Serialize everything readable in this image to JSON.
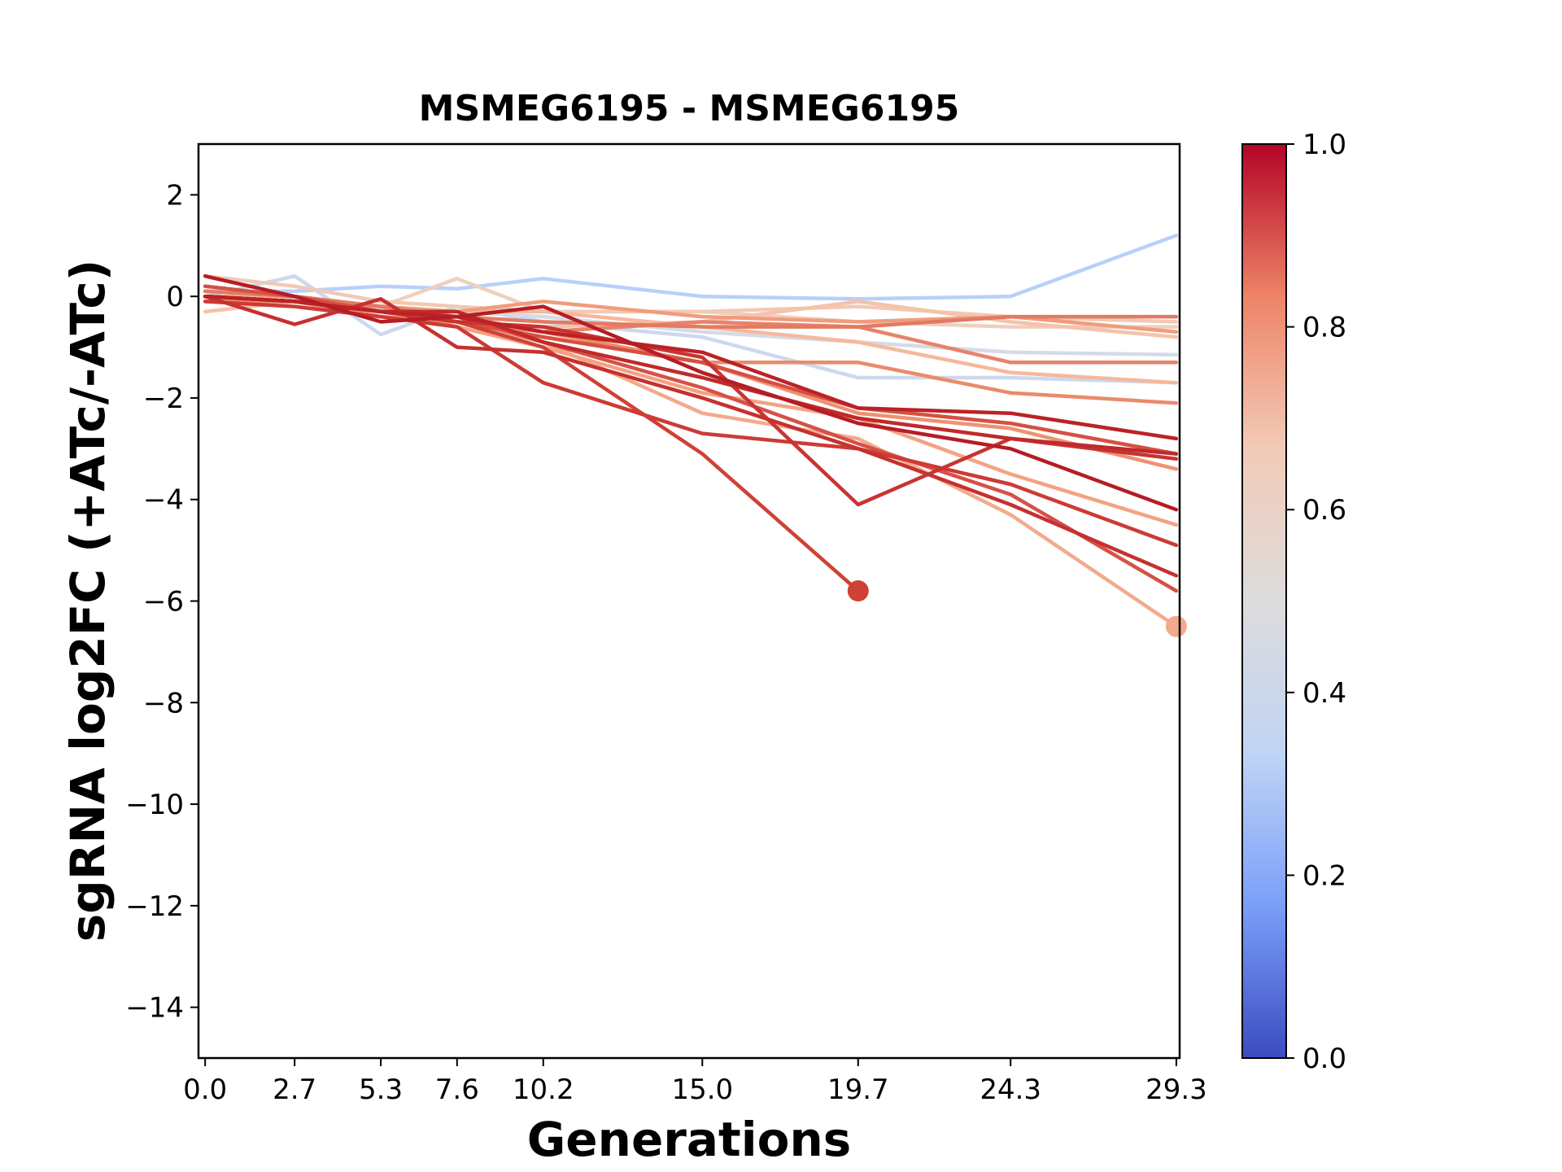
{
  "chart_data": {
    "type": "line",
    "title": "MSMEG6195 - MSMEG6195",
    "xlabel": "Generations",
    "ylabel": "sgRNA log2FC (+ATc/-ATc)",
    "x_ticks": [
      "0.0",
      "2.7",
      "5.3",
      "7.6",
      "10.2",
      "15.0",
      "19.7",
      "24.3",
      "29.3"
    ],
    "y_ticks": [
      "2",
      "0",
      "−2",
      "−4",
      "−6",
      "−8",
      "−10",
      "−12",
      "−14"
    ],
    "xlim": [
      -0.2,
      29.4
    ],
    "ylim": [
      -15,
      3
    ],
    "grid": false,
    "colorbar": {
      "cmap": "coolwarm",
      "range": [
        0,
        1
      ],
      "ticks": [
        "0.0",
        "0.2",
        "0.4",
        "0.6",
        "0.8",
        "1.0"
      ],
      "colors": [
        "#3b4cc0",
        "#7b9ff9",
        "#c0d4f5",
        "#dddcdc",
        "#f2cbb7",
        "#ee8468",
        "#b40426"
      ]
    },
    "series": [
      {
        "color": "#b8d0f9",
        "x": [
          0,
          2.7,
          5.3,
          7.6,
          10.2,
          15.0,
          19.7,
          24.3,
          29.3
        ],
        "y": [
          0.1,
          0.1,
          0.2,
          0.15,
          0.35,
          0.0,
          -0.05,
          0.0,
          1.2
        ]
      },
      {
        "color": "#cdd8ee",
        "x": [
          0,
          2.7,
          5.3,
          7.6,
          10.2,
          15.0,
          19.7,
          24.3,
          29.3
        ],
        "y": [
          0.0,
          0.4,
          -0.75,
          -0.2,
          -0.5,
          -0.8,
          -1.6,
          -1.6,
          -1.7
        ]
      },
      {
        "color": "#d5dbe5",
        "x": [
          0,
          2.7,
          5.3,
          7.6,
          10.2,
          15.0,
          19.7,
          24.3,
          29.3
        ],
        "y": [
          -0.1,
          -0.05,
          -0.25,
          -0.3,
          -0.4,
          -0.7,
          -0.9,
          -1.1,
          -1.15
        ]
      },
      {
        "color": "#efcfbd",
        "x": [
          0,
          2.7,
          5.3,
          7.6,
          10.2,
          15.0,
          19.7,
          24.3,
          29.3
        ],
        "y": [
          0.2,
          0.0,
          -0.2,
          0.35,
          -0.3,
          -0.3,
          -0.5,
          -0.6,
          -0.6
        ]
      },
      {
        "color": "#f2c9b4",
        "x": [
          0,
          2.7,
          5.3,
          7.6,
          10.2,
          15.0,
          19.7,
          24.3,
          29.3
        ],
        "y": [
          0.4,
          0.2,
          -0.1,
          -0.2,
          -0.3,
          -0.3,
          -0.2,
          -0.4,
          -0.5
        ]
      },
      {
        "color": "#f4c3aa",
        "x": [
          0,
          2.7,
          5.3,
          7.6,
          10.2,
          15.0,
          19.7,
          24.3,
          29.3
        ],
        "y": [
          -0.3,
          -0.1,
          -0.3,
          -0.5,
          -0.6,
          -0.5,
          -0.1,
          -0.5,
          -0.8
        ]
      },
      {
        "color": "#f6b89c",
        "x": [
          0,
          2.7,
          5.3,
          7.6,
          10.2,
          15.0,
          19.7,
          24.3,
          29.3
        ],
        "y": [
          0.0,
          0.0,
          -0.2,
          -0.3,
          -0.3,
          -0.6,
          -0.9,
          -1.5,
          -1.7
        ]
      },
      {
        "color": "#f3aa8c",
        "x": [
          0,
          2.7,
          5.3,
          7.6,
          10.2,
          15.0,
          19.7,
          24.3,
          29.3
        ],
        "y": [
          0.0,
          -0.1,
          -0.3,
          -0.5,
          -0.9,
          -2.3,
          -2.8,
          -4.3,
          -6.5
        ]
      },
      {
        "color": "#f4a282",
        "x": [
          0,
          2.7,
          5.3,
          7.6,
          10.2,
          15.0,
          19.7,
          24.3,
          29.3
        ],
        "y": [
          0.1,
          0.0,
          -0.2,
          -0.6,
          -1.0,
          -1.9,
          -2.4,
          -3.5,
          -4.5
        ]
      },
      {
        "color": "#f09c7c",
        "x": [
          0,
          2.7,
          5.3,
          7.6,
          10.2,
          15.0,
          19.7,
          24.3,
          29.3
        ],
        "y": [
          0.0,
          -0.1,
          -0.2,
          -0.3,
          -0.1,
          -0.4,
          -0.5,
          -0.4,
          -0.7
        ]
      },
      {
        "color": "#ee9272",
        "x": [
          0,
          2.7,
          5.3,
          7.6,
          10.2,
          15.0,
          19.7,
          24.3,
          29.3
        ],
        "y": [
          -0.1,
          -0.1,
          -0.3,
          -0.5,
          -0.8,
          -1.3,
          -2.3,
          -2.6,
          -3.4
        ]
      },
      {
        "color": "#eb8a6a",
        "x": [
          0,
          2.7,
          5.3,
          7.6,
          10.2,
          15.0,
          19.7,
          24.3,
          29.3
        ],
        "y": [
          0.0,
          -0.1,
          -0.4,
          -0.5,
          -0.7,
          -1.3,
          -1.3,
          -1.9,
          -2.1
        ]
      },
      {
        "color": "#e8826b",
        "x": [
          0,
          2.7,
          5.3,
          7.6,
          10.2,
          15.0,
          19.7,
          24.3,
          29.3
        ],
        "y": [
          0.0,
          -0.1,
          -0.3,
          -0.4,
          -0.7,
          -0.5,
          -0.6,
          -1.3,
          -1.3
        ]
      },
      {
        "color": "#e27a62",
        "x": [
          0,
          2.7,
          5.3,
          7.6,
          10.2,
          15.0,
          19.7,
          24.3,
          29.3
        ],
        "y": [
          0.1,
          0.0,
          -0.2,
          -0.4,
          -0.5,
          -0.6,
          -0.6,
          -0.4,
          -0.4
        ]
      },
      {
        "color": "#d65148",
        "x": [
          0,
          2.7,
          5.3,
          7.6,
          10.2,
          15.0,
          19.7,
          24.3,
          29.3
        ],
        "y": [
          0.0,
          -0.1,
          -0.3,
          -0.4,
          -0.9,
          -1.8,
          -2.9,
          -3.9,
          -5.8
        ]
      },
      {
        "color": "#d55042",
        "x": [
          0,
          2.7,
          5.3,
          7.6,
          10.2,
          15.0,
          19.7,
          24.3,
          29.3
        ],
        "y": [
          0.2,
          0.0,
          -0.3,
          -0.5,
          -0.8,
          -1.3,
          -2.2,
          -2.5,
          -3.1
        ]
      },
      {
        "color": "#cf4136",
        "x": [
          0,
          2.7,
          5.3,
          7.6,
          10.2,
          15.0,
          19.7
        ],
        "y": [
          0.0,
          -0.1,
          -0.3,
          -0.5,
          -1.0,
          -3.1,
          -5.8
        ]
      },
      {
        "color": "#cc3b34",
        "x": [
          0,
          2.7,
          5.3,
          7.6,
          10.2,
          15.0,
          19.7,
          24.3,
          29.3
        ],
        "y": [
          -0.1,
          -0.2,
          -0.4,
          -0.6,
          -1.7,
          -2.7,
          -3.0,
          -3.7,
          -4.9
        ]
      },
      {
        "color": "#c83432",
        "x": [
          0,
          2.7,
          5.3,
          7.6,
          10.2,
          15.0,
          19.7,
          24.3,
          29.3
        ],
        "y": [
          0.0,
          -0.1,
          -0.3,
          -0.5,
          -0.6,
          -1.2,
          -4.1,
          -2.8,
          -3.2
        ]
      },
      {
        "color": "#c5312f",
        "x": [
          0,
          2.7,
          5.3,
          7.6,
          10.2,
          15.0,
          19.7,
          24.3,
          29.3
        ],
        "y": [
          0.0,
          -0.55,
          -0.05,
          -1.0,
          -1.1,
          -2.0,
          -3.0,
          -4.1,
          -5.5
        ]
      },
      {
        "color": "#c02a2a",
        "x": [
          0,
          2.7,
          5.3,
          7.6,
          10.2,
          15.0,
          19.7,
          24.3,
          29.3
        ],
        "y": [
          0.0,
          -0.1,
          -0.3,
          -0.3,
          -0.9,
          -1.6,
          -2.4,
          -2.8,
          -3.1
        ]
      },
      {
        "color": "#bb2226",
        "x": [
          0,
          2.7,
          5.3,
          7.6,
          10.2,
          15.0,
          19.7,
          24.3,
          29.3
        ],
        "y": [
          0.0,
          -0.1,
          -0.3,
          -0.4,
          -0.7,
          -1.1,
          -2.2,
          -2.3,
          -2.8
        ]
      },
      {
        "color": "#b51d25",
        "x": [
          0,
          2.7,
          5.3,
          7.6,
          10.2,
          15.0,
          19.7,
          24.3,
          29.3
        ],
        "y": [
          0.4,
          0.0,
          -0.5,
          -0.4,
          -0.2,
          -1.5,
          -2.5,
          -3.0,
          -4.2
        ]
      }
    ],
    "end_markers": [
      {
        "x": 19.7,
        "y": -5.8,
        "color": "#cf4136"
      },
      {
        "x": 29.3,
        "y": -6.5,
        "color": "#f3aa8c"
      }
    ]
  }
}
